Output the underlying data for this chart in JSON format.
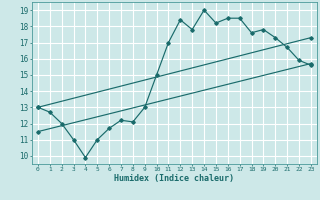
{
  "title": "",
  "xlabel": "Humidex (Indice chaleur)",
  "bg_color": "#cde8e8",
  "grid_color": "#ffffff",
  "line_color": "#1a6b6b",
  "spine_color": "#4a9a9a",
  "xlim": [
    -0.5,
    23.5
  ],
  "ylim": [
    9.5,
    19.5
  ],
  "xticks": [
    0,
    1,
    2,
    3,
    4,
    5,
    6,
    7,
    8,
    9,
    10,
    11,
    12,
    13,
    14,
    15,
    16,
    17,
    18,
    19,
    20,
    21,
    22,
    23
  ],
  "yticks": [
    10,
    11,
    12,
    13,
    14,
    15,
    16,
    17,
    18,
    19
  ],
  "line1_x": [
    0,
    1,
    2,
    3,
    4,
    5,
    6,
    7,
    8,
    9,
    10,
    11,
    12,
    13,
    14,
    15,
    16,
    17,
    18,
    19,
    20,
    21,
    22,
    23
  ],
  "line1_y": [
    13.0,
    12.7,
    12.0,
    11.0,
    9.9,
    11.0,
    11.7,
    12.2,
    12.1,
    13.0,
    15.0,
    17.0,
    18.4,
    17.8,
    19.0,
    18.2,
    18.5,
    18.5,
    17.6,
    17.8,
    17.3,
    16.7,
    15.9,
    15.6
  ],
  "line2_x": [
    0,
    23
  ],
  "line2_y": [
    13.0,
    17.3
  ],
  "line3_x": [
    0,
    23
  ],
  "line3_y": [
    11.5,
    15.7
  ]
}
